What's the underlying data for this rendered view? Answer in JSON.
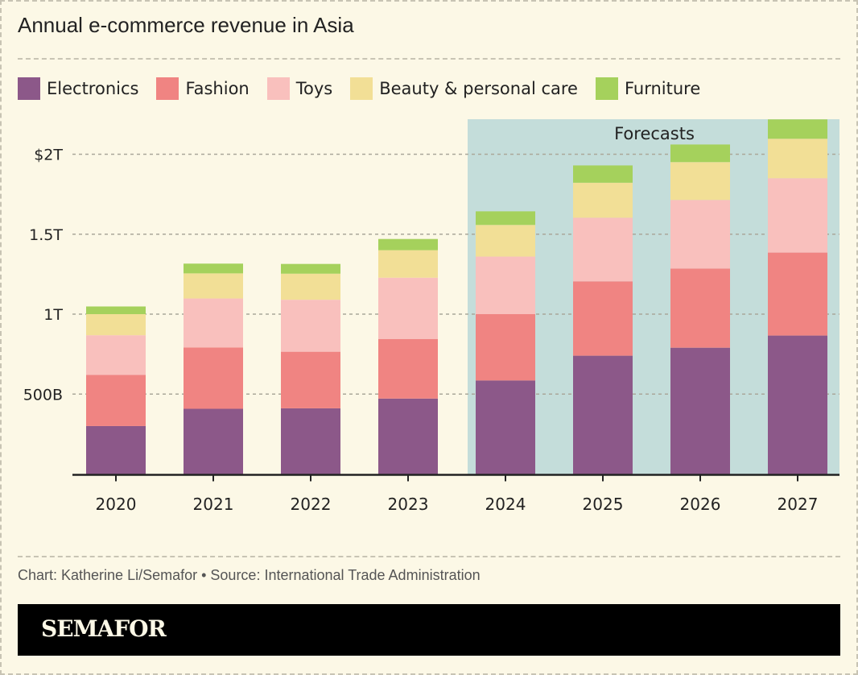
{
  "chart_data": {
    "type": "bar",
    "stacked": true,
    "title": "Annual e-commerce revenue in Asia",
    "xlabel": "",
    "ylabel": "",
    "categories": [
      "2020",
      "2021",
      "2022",
      "2023",
      "2024",
      "2025",
      "2026",
      "2027"
    ],
    "units": "billions USD",
    "series": [
      {
        "name": "Electronics",
        "color": "#8c5889",
        "values": [
          300,
          408,
          411,
          472,
          585,
          740,
          790,
          866
        ]
      },
      {
        "name": "Fashion",
        "color": "#f08482",
        "values": [
          320,
          384,
          354,
          373,
          415,
          465,
          495,
          519
        ]
      },
      {
        "name": "Toys",
        "color": "#f9c0bd",
        "values": [
          248,
          306,
          325,
          383,
          360,
          398,
          429,
          465
        ]
      },
      {
        "name": "Beauty & personal care",
        "color": "#f2df96",
        "values": [
          132,
          157,
          163,
          172,
          198,
          219,
          237,
          247
        ]
      },
      {
        "name": "Furniture",
        "color": "#a5d15c",
        "values": [
          48,
          61,
          61,
          70,
          85,
          108,
          110,
          121
        ]
      }
    ],
    "ylim": [
      0,
      2250
    ],
    "yticks": [
      {
        "value": 500,
        "label": "500B"
      },
      {
        "value": 1000,
        "label": "1T"
      },
      {
        "value": 1500,
        "label": "1.5T"
      },
      {
        "value": 2000,
        "label": "$2T"
      }
    ],
    "grid": true,
    "legend_position": "top-left",
    "annotations": [
      {
        "type": "shaded-region",
        "label": "Forecasts",
        "from": "2024",
        "to": "2027",
        "color": "#c4ddda"
      }
    ]
  },
  "footer": {
    "source": "Chart: Katherine Li/Semafor • Source: International Trade Administration",
    "brand": "SEMAFOR"
  }
}
